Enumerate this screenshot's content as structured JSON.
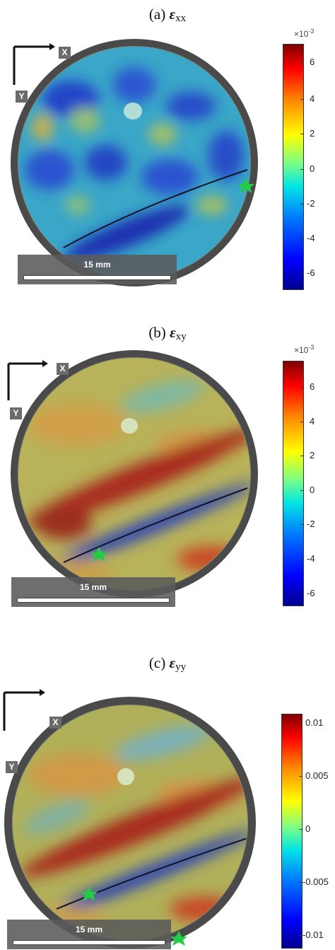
{
  "panels": [
    {
      "id": "a",
      "title_prefix": "(a) ",
      "symbol": "ε",
      "subscript": "xx",
      "axis_x": "X",
      "axis_y": "Y",
      "scale_label": "15 mm",
      "colorbar_exponent_base": "×10",
      "colorbar_exponent_power": "-3",
      "ticks": [
        "6",
        "4",
        "2",
        "0",
        "-2",
        "-4",
        "-6"
      ],
      "colormap": "jet",
      "colors": {
        "low": "#00008f",
        "mid": "#80ff80",
        "high": "#800000"
      }
    },
    {
      "id": "b",
      "title_prefix": "(b) ",
      "symbol": "ε",
      "subscript": "xy",
      "axis_x": "X",
      "axis_y": "Y",
      "scale_label": "15 mm",
      "colorbar_exponent_base": "×10",
      "colorbar_exponent_power": "-3",
      "ticks": [
        "6",
        "4",
        "2",
        "0",
        "-2",
        "-4",
        "-6"
      ],
      "colormap": "jet",
      "colors": {
        "low": "#00008f",
        "mid": "#80ff80",
        "high": "#800000"
      }
    },
    {
      "id": "c",
      "title_prefix": "(c) ",
      "symbol": "ε",
      "subscript": "yy",
      "axis_x": "X",
      "axis_y": "Y",
      "scale_label": "15 mm",
      "colorbar_exponent_base": "",
      "colorbar_exponent_power": "",
      "ticks": [
        "0.01",
        "0.005",
        "0",
        "-0.005",
        "-0.01"
      ],
      "colormap": "jet",
      "colors": {
        "low": "#00008f",
        "mid": "#80ff80",
        "high": "#800000"
      }
    }
  ],
  "marker_color": "#22cc44",
  "crack_color": "#10142a"
}
